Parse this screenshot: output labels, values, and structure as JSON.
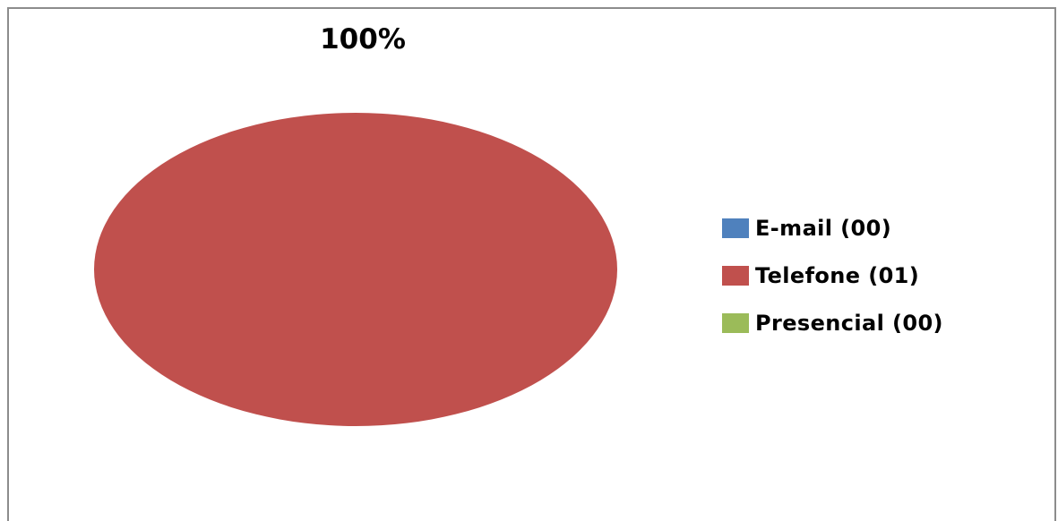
{
  "chart_data": {
    "type": "pie",
    "categories": [
      "E-mail (00)",
      "Telefone (01)",
      "Presencial (00)"
    ],
    "values": [
      0,
      1,
      0
    ],
    "colors": [
      "#4f81bd",
      "#c0504d",
      "#9bbb59"
    ],
    "data_labels": [
      "",
      "100%",
      ""
    ],
    "legend_position": "right"
  }
}
